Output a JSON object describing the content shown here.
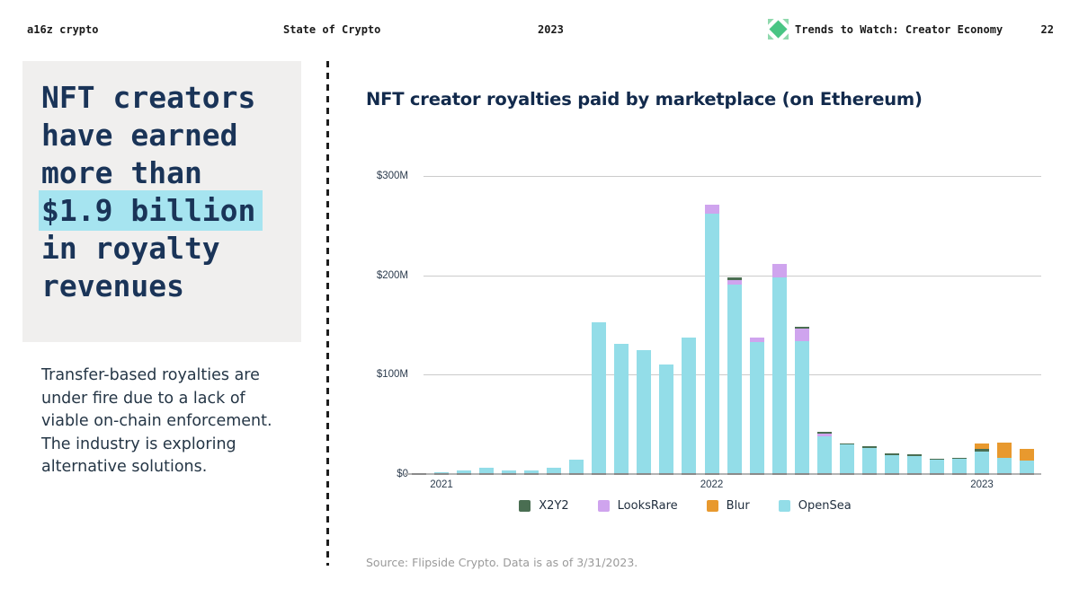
{
  "header": {
    "brand": "a16z crypto",
    "report": "State of Crypto",
    "year": "2023",
    "section": "Trends to Watch: Creator Economy",
    "page": "22",
    "logo_colors": {
      "center": "#49c584",
      "corners": "#90d9ae"
    }
  },
  "sidebar": {
    "headline_lines": [
      "NFT creators",
      "have earned",
      "more than",
      "$1.9 billion",
      "in royalty",
      "revenues"
    ],
    "highlight_text": "$1.9 billion",
    "highlight_color": "#a6e4f0",
    "paragraph": "Transfer-based royalties are under fire due to a lack of viable on-chain enforcement. The industry is exploring alternative solutions."
  },
  "chart_data": {
    "type": "bar",
    "stacked": true,
    "title": "NFT creator royalties paid by marketplace (on Ethereum)",
    "source": "Source: Flipside Crypto. Data is as of 3/31/2023.",
    "unit": "$M (USD millions per month)",
    "ylim": [
      0,
      300
    ],
    "ylabel_ticks": [
      "$0",
      "$100M",
      "$200M",
      "$300M"
    ],
    "x_year_ticks": [
      "2021",
      "2022",
      "2023"
    ],
    "grid": true,
    "legend_position": "bottom",
    "series_keys": [
      "opensea",
      "looksrare",
      "x2y2",
      "blur"
    ],
    "colors": {
      "opensea": "#93dde8",
      "looksrare": "#cfa4ee",
      "x2y2": "#4a6e52",
      "blur": "#e8992e"
    },
    "legend": [
      {
        "name": "X2Y2",
        "color": "#4a6e52"
      },
      {
        "name": "LooksRare",
        "color": "#cfa4ee"
      },
      {
        "name": "Blur",
        "color": "#e8992e"
      },
      {
        "name": "OpenSea",
        "color": "#93dde8"
      }
    ],
    "months": [
      {
        "label": "Dec 2020",
        "opensea": 0.5,
        "looksrare": 0,
        "x2y2": 0,
        "blur": 0
      },
      {
        "label": "Jan 2021",
        "year_label": "2021",
        "opensea": 2,
        "looksrare": 0,
        "x2y2": 0,
        "blur": 0
      },
      {
        "label": "Feb 2021",
        "opensea": 4,
        "looksrare": 0,
        "x2y2": 0,
        "blur": 0
      },
      {
        "label": "Mar 2021",
        "opensea": 6.5,
        "looksrare": 0,
        "x2y2": 0,
        "blur": 0
      },
      {
        "label": "Apr 2021",
        "opensea": 4,
        "looksrare": 0,
        "x2y2": 0,
        "blur": 0
      },
      {
        "label": "May 2021",
        "opensea": 3.5,
        "looksrare": 0,
        "x2y2": 0,
        "blur": 0
      },
      {
        "label": "Jun 2021",
        "opensea": 6,
        "looksrare": 0,
        "x2y2": 0,
        "blur": 0
      },
      {
        "label": "Jul 2021",
        "opensea": 14.5,
        "looksrare": 0,
        "x2y2": 0,
        "blur": 0
      },
      {
        "label": "Aug 2021",
        "opensea": 153,
        "looksrare": 0,
        "x2y2": 0,
        "blur": 0
      },
      {
        "label": "Sep 2021",
        "opensea": 131,
        "looksrare": 0,
        "x2y2": 0,
        "blur": 0
      },
      {
        "label": "Oct 2021",
        "opensea": 125,
        "looksrare": 0,
        "x2y2": 0,
        "blur": 0
      },
      {
        "label": "Nov 2021",
        "opensea": 110,
        "looksrare": 0,
        "x2y2": 0,
        "blur": 0
      },
      {
        "label": "Dec 2021",
        "opensea": 137.5,
        "looksrare": 0,
        "x2y2": 0,
        "blur": 0
      },
      {
        "label": "Jan 2022",
        "year_label": "2022",
        "opensea": 262,
        "looksrare": 9,
        "x2y2": 0,
        "blur": 0
      },
      {
        "label": "Feb 2022",
        "opensea": 191,
        "looksrare": 4,
        "x2y2": 2.5,
        "blur": 0
      },
      {
        "label": "Mar 2022",
        "opensea": 133,
        "looksrare": 4.5,
        "x2y2": 0,
        "blur": 0
      },
      {
        "label": "Apr 2022",
        "opensea": 198,
        "looksrare": 13.5,
        "x2y2": 0,
        "blur": 0
      },
      {
        "label": "May 2022",
        "opensea": 134,
        "looksrare": 12,
        "x2y2": 2.5,
        "blur": 0
      },
      {
        "label": "Jun 2022",
        "opensea": 38,
        "looksrare": 2.5,
        "x2y2": 2,
        "blur": 0
      },
      {
        "label": "Jul 2022",
        "opensea": 29.5,
        "looksrare": 0,
        "x2y2": 1,
        "blur": 0
      },
      {
        "label": "Aug 2022",
        "opensea": 26,
        "looksrare": 0,
        "x2y2": 2,
        "blur": 0
      },
      {
        "label": "Sep 2022",
        "opensea": 19,
        "looksrare": 0,
        "x2y2": 1.5,
        "blur": 0
      },
      {
        "label": "Oct 2022",
        "opensea": 18.5,
        "looksrare": 0,
        "x2y2": 1.5,
        "blur": 0
      },
      {
        "label": "Nov 2022",
        "opensea": 14.5,
        "looksrare": 0,
        "x2y2": 1,
        "blur": 0
      },
      {
        "label": "Dec 2022",
        "opensea": 15,
        "looksrare": 0,
        "x2y2": 1,
        "blur": 0
      },
      {
        "label": "Jan 2023",
        "year_label": "2023",
        "opensea": 23,
        "looksrare": 0,
        "x2y2": 2.5,
        "blur": 5.5
      },
      {
        "label": "Feb 2023",
        "opensea": 16.5,
        "looksrare": 0,
        "x2y2": 0,
        "blur": 15
      },
      {
        "label": "Mar 2023",
        "opensea": 13.5,
        "looksrare": 0,
        "x2y2": 0,
        "blur": 11.5
      }
    ]
  }
}
